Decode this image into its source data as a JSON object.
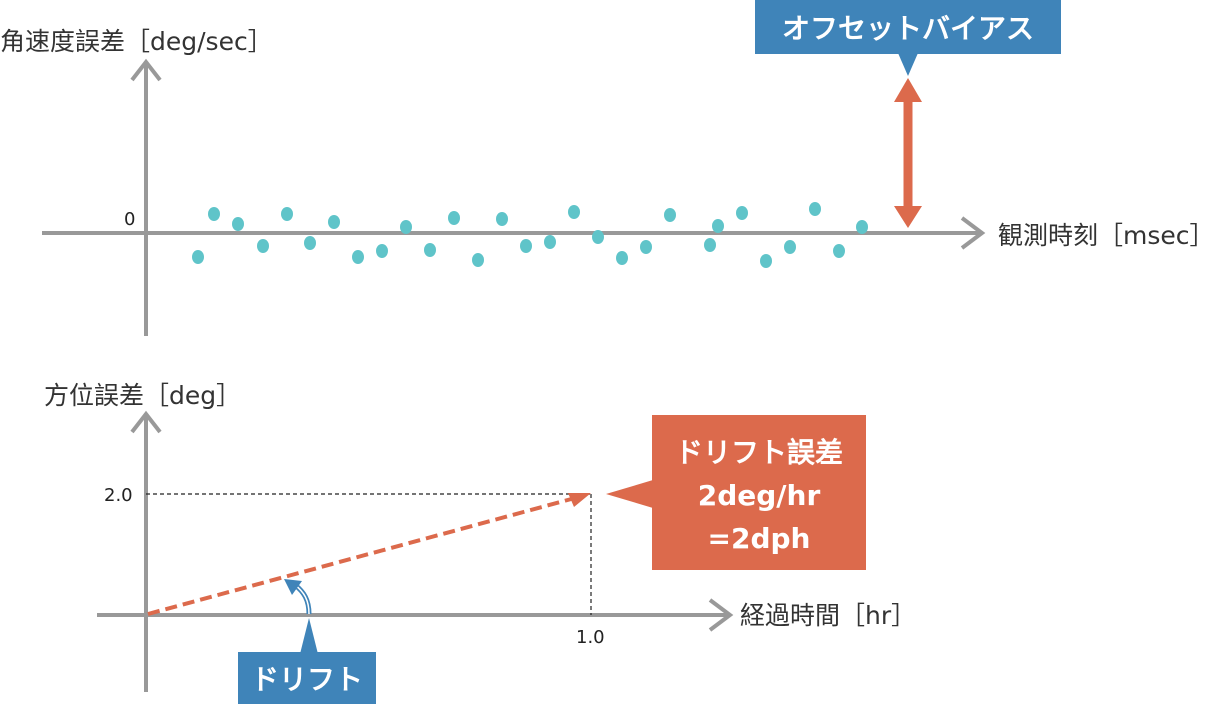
{
  "top_chart": {
    "y_label": "角速度誤差［deg/sec］",
    "x_label": "観測時刻［msec］",
    "zero_tick": "0",
    "callout": "オフセットバイアス"
  },
  "bottom_chart": {
    "y_label": "方位誤差［deg］",
    "x_label": "経過時間［hr］",
    "y_tick": "2.0",
    "x_tick": "1.0",
    "callout_lines": [
      "ドリフト誤差",
      "2deg/hr",
      "=2dph"
    ],
    "drift_label": "ドリフト"
  },
  "colors": {
    "axis": "#999999",
    "dots": "#5fc4c9",
    "orange": "#dc6a4c",
    "blue": "#3f84b9"
  }
}
